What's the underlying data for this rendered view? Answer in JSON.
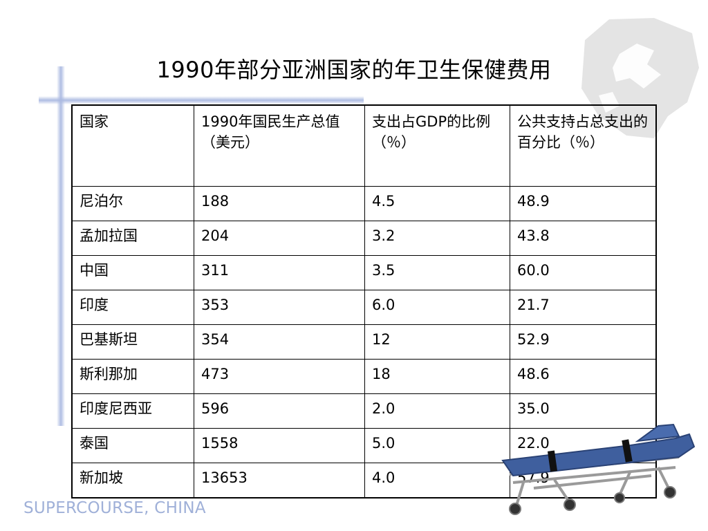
{
  "title": "1990年部分亚洲国家的年卫生保健费用",
  "table": {
    "headers": [
      "国家",
      "1990年国民生产总值（美元）",
      "支出占GDP的比例（％）",
      "公共支持占总支出的百分比（％）"
    ],
    "rows": [
      [
        "尼泊尔",
        "188",
        "4.5",
        "48.9"
      ],
      [
        "孟加拉国",
        "204",
        "3.2",
        "43.8"
      ],
      [
        "中国",
        "311",
        "3.5",
        "60.0"
      ],
      [
        "印度",
        "353",
        "6.0",
        "21.7"
      ],
      [
        "巴基斯坦",
        "354",
        "12",
        "52.9"
      ],
      [
        "斯利那加",
        "473",
        "18",
        "48.6"
      ],
      [
        "印度尼西亚",
        "596",
        "2.0",
        "35.0"
      ],
      [
        "泰国",
        "1558",
        "5.0",
        "22.0"
      ],
      [
        "新加坡",
        "13653",
        "4.0",
        "57.9"
      ]
    ]
  },
  "footer": "SUPERCOURSE, CHINA",
  "colors": {
    "accent_line": "#aab9e1",
    "footer_text": "#9fb0d8",
    "stretcher_mattress": "#3f5f9e"
  },
  "icons": {
    "watermark": "supercourse-logo-watermark",
    "illustration": "stretcher-illustration"
  }
}
